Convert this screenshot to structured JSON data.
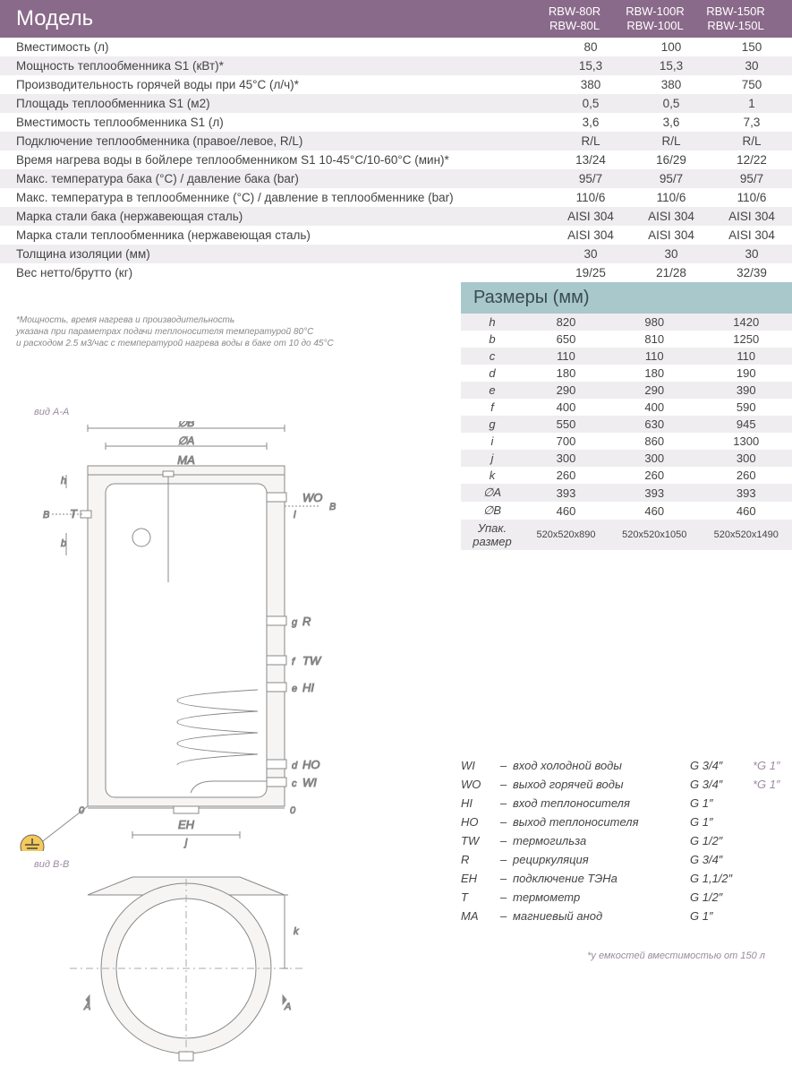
{
  "header": {
    "title": "Модель",
    "model_cols": [
      {
        "top": "RBW-80R",
        "bot": "RBW-80L"
      },
      {
        "top": "RBW-100R",
        "bot": "RBW-100L"
      },
      {
        "top": "RBW-150R",
        "bot": "RBW-150L"
      }
    ]
  },
  "specs": [
    {
      "label": "Вместимость (л)",
      "vals": [
        "80",
        "100",
        "150"
      ]
    },
    {
      "label": "Мощность теплообменника S1 (кВт)*",
      "vals": [
        "15,3",
        "15,3",
        "30"
      ]
    },
    {
      "label": "Производительность горячей воды при 45°С  (л/ч)*",
      "vals": [
        "380",
        "380",
        "750"
      ]
    },
    {
      "label": "Площадь теплообменника S1 (м2)",
      "vals": [
        "0,5",
        "0,5",
        "1"
      ]
    },
    {
      "label": "Вместимость теплообменника S1 (л)",
      "vals": [
        "3,6",
        "3,6",
        "7,3"
      ]
    },
    {
      "label": "Подключение теплообменника (правое/левое, R/L)",
      "vals": [
        "R/L",
        "R/L",
        "R/L"
      ]
    },
    {
      "label": "Время нагрева воды в бойлере теплообменником S1 10-45°С/10-60°С (мин)*",
      "vals": [
        "13/24",
        "16/29",
        "12/22"
      ]
    },
    {
      "label": "Макс. температура бака (°С) / давление бака (bar)",
      "vals": [
        "95/7",
        "95/7",
        "95/7"
      ]
    },
    {
      "label": "Макс. температура в теплообменнике (°С) / давление в теплообменнике (bar)",
      "vals": [
        "110/6",
        "110/6",
        "110/6"
      ]
    },
    {
      "label": "Марка стали бака (нержавеющая сталь)",
      "vals": [
        "AISI 304",
        "AISI 304",
        "AISI 304"
      ]
    },
    {
      "label": "Марка стали теплообменника (нержавеющая сталь)",
      "vals": [
        "AISI 304",
        "AISI 304",
        "AISI 304"
      ]
    },
    {
      "label": "Толщина изоляции (мм)",
      "vals": [
        "30",
        "30",
        "30"
      ]
    },
    {
      "label": "Вес нетто/брутто (кг)",
      "vals": [
        "19/25",
        "21/28",
        "32/39"
      ]
    }
  ],
  "sizes_title": "Размеры (мм)",
  "sizes": [
    {
      "k": "h",
      "vals": [
        "820",
        "980",
        "1420"
      ]
    },
    {
      "k": "b",
      "vals": [
        "650",
        "810",
        "1250"
      ]
    },
    {
      "k": "c",
      "vals": [
        "110",
        "110",
        "110"
      ]
    },
    {
      "k": "d",
      "vals": [
        "180",
        "180",
        "190"
      ]
    },
    {
      "k": "e",
      "vals": [
        "290",
        "290",
        "390"
      ]
    },
    {
      "k": "f",
      "vals": [
        "400",
        "400",
        "590"
      ]
    },
    {
      "k": "g",
      "vals": [
        "550",
        "630",
        "945"
      ]
    },
    {
      "k": "i",
      "vals": [
        "700",
        "860",
        "1300"
      ]
    },
    {
      "k": "j",
      "vals": [
        "300",
        "300",
        "300"
      ]
    },
    {
      "k": "k",
      "vals": [
        "260",
        "260",
        "260"
      ]
    },
    {
      "k": "∅A",
      "vals": [
        "393",
        "393",
        "393"
      ]
    },
    {
      "k": "∅B",
      "vals": [
        "460",
        "460",
        "460"
      ]
    },
    {
      "k": "Упак. размер",
      "vals": [
        "520х520х890",
        "520х520х1050",
        "520х520х1490"
      ]
    }
  ],
  "footnote": "*Мощность, время нагрева и производительность\nуказана при параметрах подачи теплоносителя температурой 80°С\nи расходом 2.5 м3/час с температурой нагрева воды в баке от 10 до 45°С",
  "legend": [
    {
      "code": "WI",
      "desc": "вход холодной воды",
      "th": "G 3/4″",
      "alt": "*G 1″"
    },
    {
      "code": "WO",
      "desc": "выход горячей воды",
      "th": "G 3/4″",
      "alt": "*G 1″"
    },
    {
      "code": "HI",
      "desc": "вход теплоносителя",
      "th": "G 1″",
      "alt": ""
    },
    {
      "code": "HO",
      "desc": "выход теплоносителя",
      "th": "G 1″",
      "alt": ""
    },
    {
      "code": "TW",
      "desc": "термогильза",
      "th": "G 1/2″",
      "alt": ""
    },
    {
      "code": "R",
      "desc": "рециркуляция",
      "th": "G 3/4″",
      "alt": ""
    },
    {
      "code": "EH",
      "desc": "подключение ТЭНа",
      "th": "G 1,1/2″",
      "alt": ""
    },
    {
      "code": "T",
      "desc": "термометр",
      "th": "G 1/2″",
      "alt": ""
    },
    {
      "code": "MA",
      "desc": "магниевый анод",
      "th": "G 1″",
      "alt": ""
    }
  ],
  "legend_note": "*у емкостей вместимостью от 150 л",
  "diagram": {
    "view_a": "вид А-А",
    "view_b": "вид В-В",
    "labels": {
      "OB": "∅B",
      "OA": "∅A",
      "MA": "MA",
      "WO": "WO",
      "T": "T",
      "R": "R",
      "TW": "TW",
      "HI": "HI",
      "HO": "HO",
      "WI": "WI",
      "EH": "EH",
      "h": "h",
      "b": "b",
      "g": "g",
      "f": "f",
      "e": "e",
      "d": "d",
      "c": "c",
      "j": "j",
      "k": "k",
      "i": "i",
      "B": "B",
      "A": "A",
      "zero": "0"
    },
    "colors": {
      "stroke": "#888888",
      "fill_outer": "#f7f5f3",
      "fill_inner": "#ffffff",
      "centerline": "#aaaaaa",
      "ground_fill": "#f5c95a",
      "ground_stroke": "#666666"
    }
  }
}
